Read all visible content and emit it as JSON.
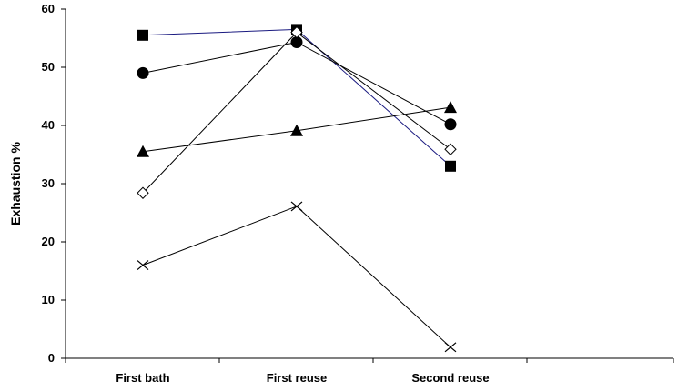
{
  "chart_data": {
    "type": "line",
    "title": "",
    "xlabel": "",
    "ylabel": "Exhaustion %",
    "categories": [
      "First bath",
      "First reuse",
      "Second reuse"
    ],
    "ylim": [
      0,
      60
    ],
    "yticks": [
      0,
      10,
      20,
      30,
      40,
      50,
      60
    ],
    "grid": false,
    "legend": "none",
    "series": [
      {
        "marker": "square",
        "color": "#1a1a80",
        "values": [
          55.5,
          56.5,
          33.0
        ]
      },
      {
        "marker": "circle",
        "color": "#000000",
        "values": [
          49.0,
          54.3,
          40.2
        ]
      },
      {
        "marker": "triangle",
        "color": "#000000",
        "values": [
          35.5,
          39.1,
          43.1
        ]
      },
      {
        "marker": "diamond-open",
        "color": "#000000",
        "values": [
          28.4,
          56.0,
          35.9
        ]
      },
      {
        "marker": "x",
        "color": "#000000",
        "values": [
          16.0,
          26.1,
          1.9
        ]
      }
    ]
  }
}
